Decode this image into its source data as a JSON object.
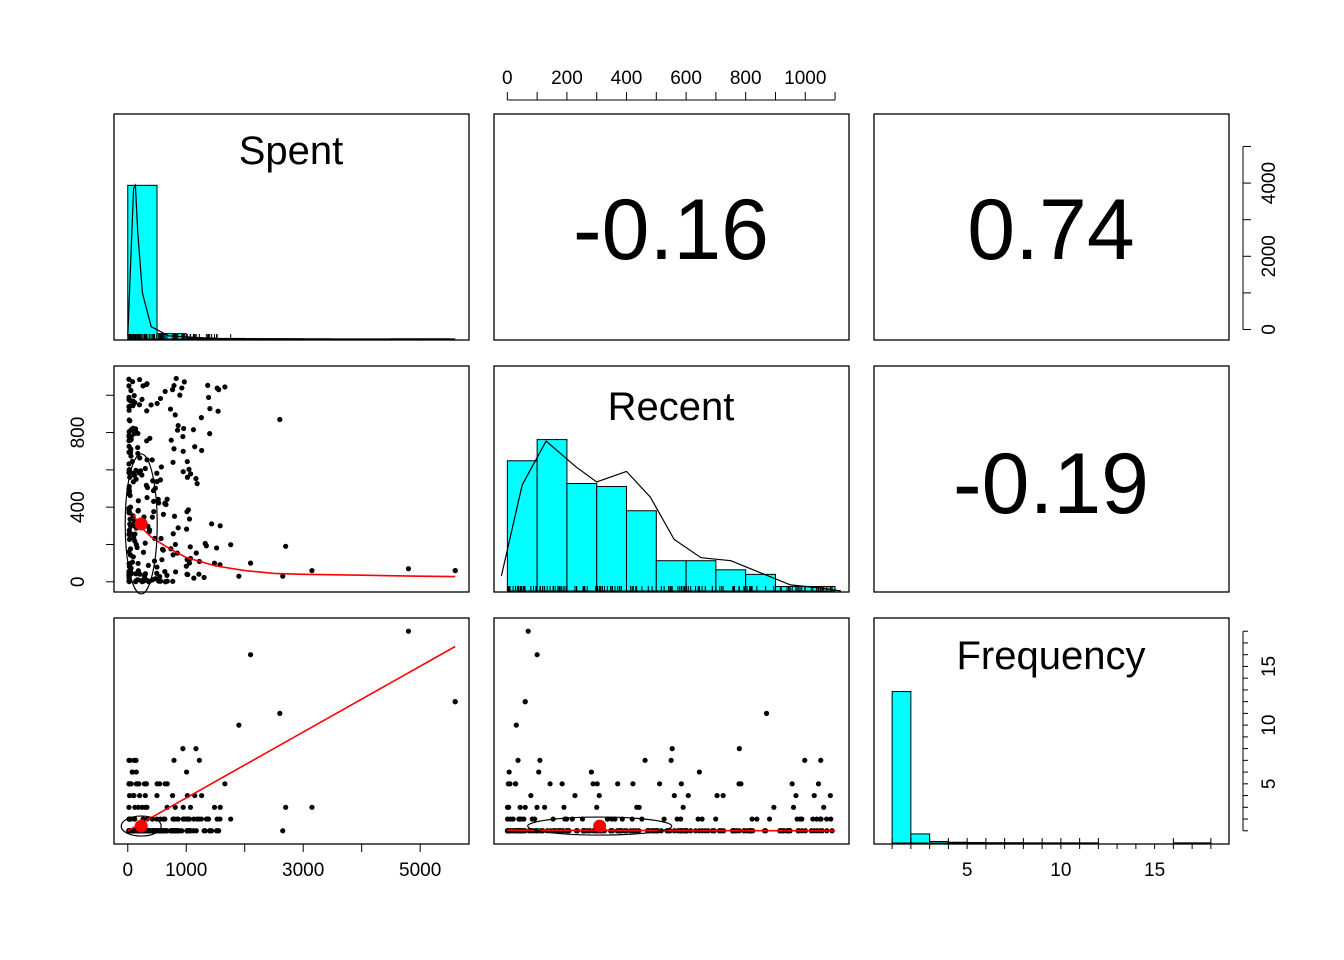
{
  "chart_data": {
    "type": "scatter",
    "variables": [
      "Spent",
      "Recent",
      "Frequency"
    ],
    "correlations": [
      {
        "row": 1,
        "col": 2,
        "value": "-0.16"
      },
      {
        "row": 1,
        "col": 3,
        "value": "0.74"
      },
      {
        "row": 2,
        "col": 3,
        "value": "-0.19"
      }
    ],
    "axes": {
      "Spent": {
        "ticks": [
          "0",
          "1000",
          "3000",
          "5000"
        ],
        "tick_values": [
          0,
          1000,
          3000,
          5000
        ],
        "range": [
          -150,
          5750
        ]
      },
      "Recent": {
        "ticks": [
          "0",
          "200",
          "400",
          "600",
          "800",
          "1000"
        ],
        "tick_values": [
          0,
          200,
          400,
          600,
          800,
          1000
        ],
        "left_ticks": [
          "0",
          "400",
          "800"
        ],
        "left_tick_values": [
          0,
          400,
          800
        ],
        "range": [
          -28,
          1130
        ]
      },
      "Frequency": {
        "ticks": [
          "5",
          "10",
          "15"
        ],
        "tick_values": [
          5,
          10,
          15
        ],
        "range": [
          0.3,
          18.7
        ]
      },
      "Spent_density_axis": {
        "ticks": [
          "0",
          "2000",
          "4000"
        ],
        "tick_values": [
          0,
          2000,
          4000
        ],
        "minor_ticks": [
          1000,
          3000,
          5000
        ],
        "range": [
          -150,
          5750
        ]
      }
    },
    "histograms": {
      "Spent": {
        "breaks": [
          0,
          500,
          1000,
          1500,
          2000,
          2500,
          3000,
          3500,
          4000,
          4500,
          5000,
          5500
        ],
        "heights": [
          1.0,
          0.035,
          0.006,
          0.004,
          0.002,
          0.002,
          0.001,
          0,
          0,
          0.001,
          0.001
        ]
      },
      "Recent": {
        "breaks": [
          0,
          100,
          200,
          300,
          400,
          500,
          600,
          700,
          800,
          900,
          1000,
          1100
        ],
        "heights": [
          0.86,
          1.0,
          0.71,
          0.69,
          0.53,
          0.2,
          0.2,
          0.14,
          0.11,
          0.03,
          0.03
        ]
      },
      "Frequency": {
        "breaks": [
          1,
          2,
          3,
          4,
          5,
          6,
          7,
          8,
          9,
          10,
          11,
          12,
          13,
          14,
          15,
          16,
          17,
          18
        ],
        "heights": [
          1.0,
          0.06,
          0.01,
          0.005,
          0.003,
          0.002,
          0.002,
          0.001,
          0.001,
          0.001,
          0.001,
          0,
          0,
          0,
          0,
          0.001,
          0.001
        ]
      }
    },
    "fits": {
      "recent_vs_spent_loess": {
        "x": [
          100,
          200,
          400,
          700,
          1000,
          1500,
          2000,
          2500,
          3000,
          4000,
          5000,
          5600
        ],
        "y": [
          360,
          300,
          240,
          180,
          130,
          85,
          60,
          45,
          40,
          35,
          30,
          28
        ]
      },
      "frequency_vs_spent_linear": {
        "x": [
          0,
          5600
        ],
        "y": [
          1.0,
          16.7
        ]
      },
      "frequency_vs_recent_loess": {
        "x": [
          0,
          1100
        ],
        "y": [
          1.05,
          1.0
        ]
      }
    },
    "means": {
      "Spent": 230,
      "Recent": 310,
      "Frequency": 1.4
    },
    "grid": false,
    "legend": "none"
  }
}
